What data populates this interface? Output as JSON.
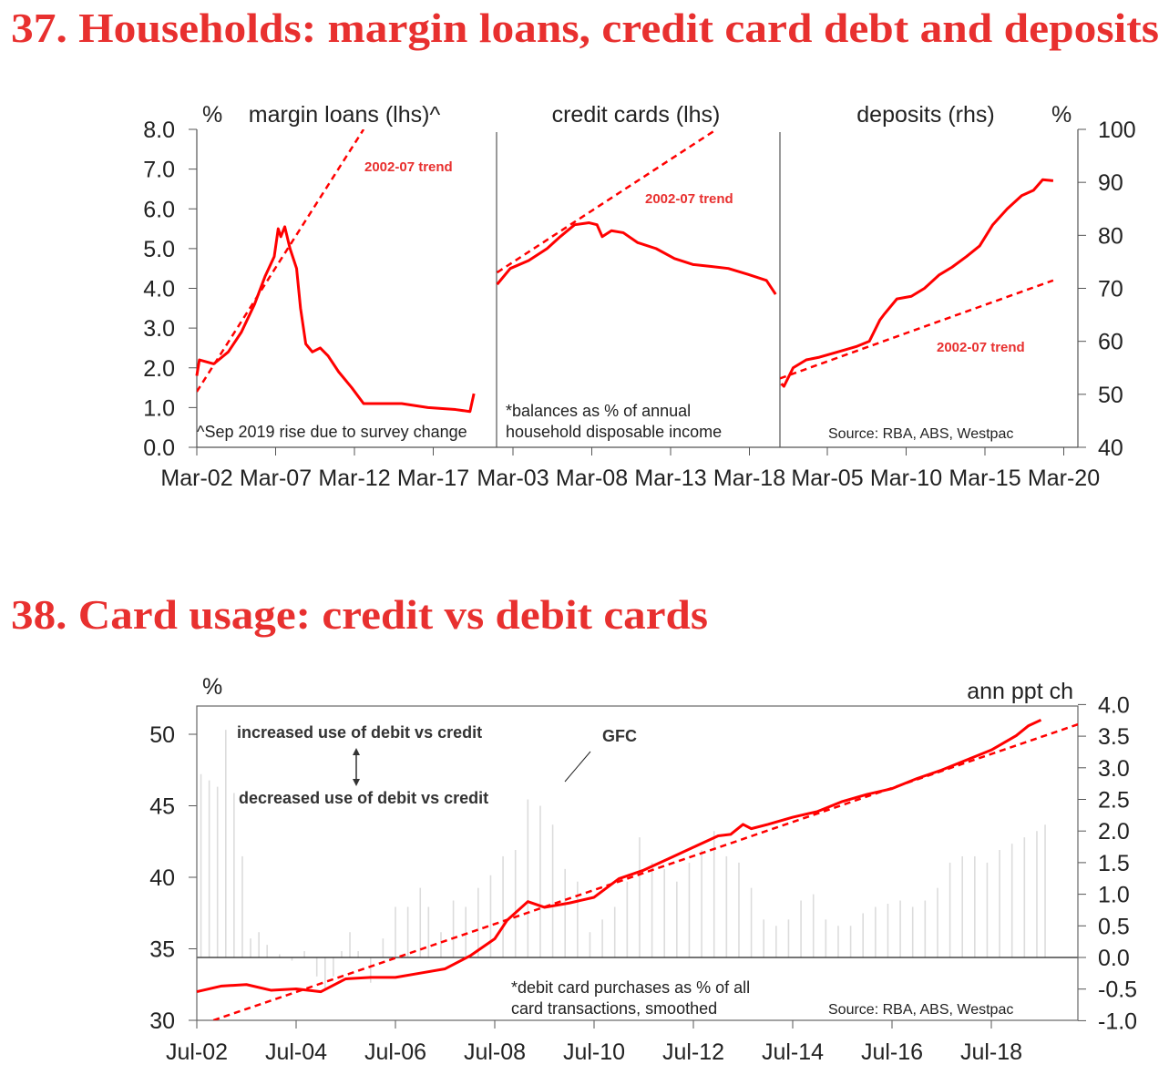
{
  "colors": {
    "title": "#e8302f",
    "series": "#ff0000",
    "bars": "#dcdcdc",
    "axis": "#333333"
  },
  "chart_data": [
    {
      "type": "line",
      "title": "37. Households: margin loans, credit card debt and deposits",
      "left_unit": "%",
      "right_unit": "%",
      "ylim_left": [
        0,
        8
      ],
      "ylim_right": [
        40,
        100
      ],
      "yticks_left": [
        "8.0",
        "7.0",
        "6.0",
        "5.0",
        "4.0",
        "3.0",
        "2.0",
        "1.0",
        "0.0"
      ],
      "yticks_right": [
        "100",
        "90",
        "80",
        "70",
        "60",
        "50",
        "40"
      ],
      "trend_label": "2002-07 trend",
      "panels": [
        {
          "name": "margin loans (lhs)^",
          "axis": "lhs",
          "xticks": [
            "Mar-02",
            "Mar-07",
            "Mar-12",
            "Mar-17"
          ],
          "note": [
            "^Sep 2019 rise due to survey change"
          ],
          "values": [
            [
              "2002-03",
              1.8
            ],
            [
              "2002-05",
              2.2
            ],
            [
              "2003-04",
              2.1
            ],
            [
              "2004-03",
              2.4
            ],
            [
              "2005-01",
              2.9
            ],
            [
              "2005-11",
              3.6
            ],
            [
              "2006-07",
              4.3
            ],
            [
              "2007-02",
              4.8
            ],
            [
              "2007-05",
              5.5
            ],
            [
              "2007-07",
              5.3
            ],
            [
              "2007-10",
              5.55
            ],
            [
              "2008-02",
              5.0
            ],
            [
              "2008-07",
              4.5
            ],
            [
              "2008-10",
              3.5
            ],
            [
              "2009-02",
              2.6
            ],
            [
              "2009-07",
              2.4
            ],
            [
              "2010-01",
              2.5
            ],
            [
              "2010-07",
              2.3
            ],
            [
              "2011-03",
              1.9
            ],
            [
              "2012-01",
              1.5
            ],
            [
              "2012-10",
              1.1
            ],
            [
              "2015-03",
              1.1
            ],
            [
              "2016-11",
              1.0
            ],
            [
              "2018-08",
              0.95
            ],
            [
              "2019-07",
              0.9
            ],
            [
              "2019-10",
              1.35
            ]
          ],
          "trend": [
            [
              "2002-03",
              1.4
            ],
            [
              "2012-10",
              8.0
            ]
          ]
        },
        {
          "name": "credit cards (lhs)",
          "axis": "lhs",
          "xticks": [
            "Mar-03",
            "Mar-08",
            "Mar-13",
            "Mar-18"
          ],
          "note": [
            "*balances as % of annual",
            "household disposable income"
          ],
          "values": [
            [
              "2002-03",
              4.1
            ],
            [
              "2003-01",
              4.5
            ],
            [
              "2004-03",
              4.7
            ],
            [
              "2005-05",
              5.0
            ],
            [
              "2006-03",
              5.3
            ],
            [
              "2007-02",
              5.6
            ],
            [
              "2008-01",
              5.65
            ],
            [
              "2008-07",
              5.6
            ],
            [
              "2008-11",
              5.3
            ],
            [
              "2009-06",
              5.45
            ],
            [
              "2010-03",
              5.4
            ],
            [
              "2011-02",
              5.15
            ],
            [
              "2012-04",
              5.0
            ],
            [
              "2013-06",
              4.75
            ],
            [
              "2014-08",
              4.6
            ],
            [
              "2015-10",
              4.55
            ],
            [
              "2016-11",
              4.5
            ],
            [
              "2018-02",
              4.35
            ],
            [
              "2019-04",
              4.2
            ],
            [
              "2019-11",
              3.85
            ]
          ],
          "trend": [
            [
              "2002-03",
              4.4
            ],
            [
              "2016-02",
              8.0
            ]
          ]
        },
        {
          "name": "deposits (rhs)",
          "axis": "rhs",
          "xticks": [
            "Mar-05",
            "Mar-10",
            "Mar-15",
            "Mar-20"
          ],
          "note": [
            "Source: RBA, ABS, Westpac"
          ],
          "values": [
            [
              "2002-04",
              52
            ],
            [
              "2002-06",
              51.5
            ],
            [
              "2003-01",
              55
            ],
            [
              "2003-11",
              56.5
            ],
            [
              "2004-09",
              57
            ],
            [
              "2005-11",
              58
            ],
            [
              "2007-01",
              59
            ],
            [
              "2007-11",
              60
            ],
            [
              "2008-07",
              64
            ],
            [
              "2008-10",
              65
            ],
            [
              "2009-08",
              68
            ],
            [
              "2010-07",
              68.5
            ],
            [
              "2011-05",
              70
            ],
            [
              "2012-04",
              72.5
            ],
            [
              "2013-02",
              74
            ],
            [
              "2014-01",
              76
            ],
            [
              "2014-11",
              78
            ],
            [
              "2015-09",
              82
            ],
            [
              "2016-08",
              85
            ],
            [
              "2017-07",
              87.5
            ],
            [
              "2018-04",
              88.5
            ],
            [
              "2018-11",
              90.5
            ],
            [
              "2019-07",
              90.3
            ]
          ],
          "trend": [
            [
              "2002-03",
              53
            ],
            [
              "2019-07",
              71.5
            ]
          ]
        }
      ]
    },
    {
      "type": "line+bar",
      "title": "38. Card usage: credit vs debit cards",
      "left_unit": "%",
      "right_unit": "ann ppt ch",
      "ylim_left": [
        30,
        52
      ],
      "ylim_right": [
        -1.0,
        4.0
      ],
      "yticks_left": [
        "50",
        "45",
        "40",
        "35",
        "30"
      ],
      "yticks_right": [
        "4.0",
        "3.5",
        "3.0",
        "2.5",
        "2.0",
        "1.5",
        "1.0",
        "0.5",
        "0.0",
        "-0.5",
        "-1.0"
      ],
      "xticks": [
        "Jul-02",
        "Jul-04",
        "Jul-06",
        "Jul-08",
        "Jul-10",
        "Jul-12",
        "Jul-14",
        "Jul-16",
        "Jul-18"
      ],
      "annotations": {
        "up": "increased use of debit vs credit",
        "down": "decreased use of debit vs credit",
        "gfc": "GFC",
        "note": [
          "*debit card purchases as % of all",
          "card transactions, smoothed"
        ],
        "source": "Source: RBA, ABS, Westpac"
      },
      "line": [
        [
          "2002-07",
          32.0
        ],
        [
          "2003-01",
          32.4
        ],
        [
          "2003-07",
          32.5
        ],
        [
          "2004-01",
          32.1
        ],
        [
          "2004-07",
          32.2
        ],
        [
          "2005-01",
          32.0
        ],
        [
          "2005-07",
          32.9
        ],
        [
          "2006-01",
          33.0
        ],
        [
          "2006-07",
          33.0
        ],
        [
          "2007-01",
          33.3
        ],
        [
          "2007-07",
          33.6
        ],
        [
          "2008-01",
          34.5
        ],
        [
          "2008-07",
          35.7
        ],
        [
          "2008-10",
          37.0
        ],
        [
          "2009-03",
          38.3
        ],
        [
          "2009-07",
          37.9
        ],
        [
          "2010-01",
          38.2
        ],
        [
          "2010-07",
          38.6
        ],
        [
          "2011-01",
          39.9
        ],
        [
          "2011-07",
          40.5
        ],
        [
          "2012-01",
          41.3
        ],
        [
          "2012-07",
          42.1
        ],
        [
          "2013-01",
          42.9
        ],
        [
          "2013-04",
          43.0
        ],
        [
          "2013-07",
          43.7
        ],
        [
          "2013-09",
          43.4
        ],
        [
          "2014-01",
          43.7
        ],
        [
          "2014-07",
          44.2
        ],
        [
          "2015-01",
          44.6
        ],
        [
          "2015-07",
          45.3
        ],
        [
          "2016-01",
          45.8
        ],
        [
          "2016-07",
          46.2
        ],
        [
          "2017-01",
          46.9
        ],
        [
          "2017-07",
          47.5
        ],
        [
          "2018-01",
          48.2
        ],
        [
          "2018-07",
          48.9
        ],
        [
          "2019-01",
          49.9
        ],
        [
          "2019-04",
          50.6
        ],
        [
          "2019-07",
          51.0
        ]
      ],
      "trend": [
        [
          "2002-11",
          30.0
        ],
        [
          "2020-04",
          50.7
        ]
      ],
      "bars": [
        [
          "2002-08",
          2.9
        ],
        [
          "2002-10",
          2.8
        ],
        [
          "2002-12",
          2.7
        ],
        [
          "2003-02",
          3.6
        ],
        [
          "2003-04",
          2.6
        ],
        [
          "2003-06",
          1.6
        ],
        [
          "2003-08",
          0.3
        ],
        [
          "2003-10",
          0.4
        ],
        [
          "2003-12",
          0.2
        ],
        [
          "2004-03",
          0.05
        ],
        [
          "2004-06",
          -0.05
        ],
        [
          "2004-09",
          0.1
        ],
        [
          "2004-12",
          -0.3
        ],
        [
          "2005-02",
          -0.5
        ],
        [
          "2005-04",
          -0.3
        ],
        [
          "2005-06",
          0.1
        ],
        [
          "2005-08",
          0.4
        ],
        [
          "2005-10",
          0.1
        ],
        [
          "2006-01",
          -0.4
        ],
        [
          "2006-04",
          0.3
        ],
        [
          "2006-07",
          0.8
        ],
        [
          "2006-10",
          0.8
        ],
        [
          "2007-01",
          1.1
        ],
        [
          "2007-03",
          0.8
        ],
        [
          "2007-06",
          0.4
        ],
        [
          "2007-09",
          0.9
        ],
        [
          "2007-12",
          0.8
        ],
        [
          "2008-03",
          1.1
        ],
        [
          "2008-06",
          1.3
        ],
        [
          "2008-09",
          1.6
        ],
        [
          "2008-12",
          1.7
        ],
        [
          "2009-03",
          2.5
        ],
        [
          "2009-06",
          2.4
        ],
        [
          "2009-09",
          2.1
        ],
        [
          "2009-12",
          1.4
        ],
        [
          "2010-03",
          1.2
        ],
        [
          "2010-06",
          0.4
        ],
        [
          "2010-09",
          0.6
        ],
        [
          "2010-12",
          0.8
        ],
        [
          "2011-03",
          1.2
        ],
        [
          "2011-06",
          1.9
        ],
        [
          "2011-09",
          1.5
        ],
        [
          "2011-12",
          1.4
        ],
        [
          "2012-03",
          1.2
        ],
        [
          "2012-06",
          1.5
        ],
        [
          "2012-09",
          1.7
        ],
        [
          "2012-12",
          2.0
        ],
        [
          "2013-03",
          1.6
        ],
        [
          "2013-06",
          1.5
        ],
        [
          "2013-09",
          1.1
        ],
        [
          "2013-12",
          0.6
        ],
        [
          "2014-03",
          0.5
        ],
        [
          "2014-06",
          0.6
        ],
        [
          "2014-09",
          0.9
        ],
        [
          "2014-12",
          1.0
        ],
        [
          "2015-03",
          0.6
        ],
        [
          "2015-06",
          0.5
        ],
        [
          "2015-09",
          0.5
        ],
        [
          "2015-12",
          0.7
        ],
        [
          "2016-03",
          0.8
        ],
        [
          "2016-06",
          0.85
        ],
        [
          "2016-09",
          0.9
        ],
        [
          "2016-12",
          0.8
        ],
        [
          "2017-03",
          0.9
        ],
        [
          "2017-06",
          1.1
        ],
        [
          "2017-09",
          1.5
        ],
        [
          "2017-12",
          1.6
        ],
        [
          "2018-03",
          1.6
        ],
        [
          "2018-06",
          1.5
        ],
        [
          "2018-09",
          1.7
        ],
        [
          "2018-12",
          1.8
        ],
        [
          "2019-03",
          1.9
        ],
        [
          "2019-06",
          2.0
        ],
        [
          "2019-08",
          2.1
        ]
      ]
    }
  ]
}
